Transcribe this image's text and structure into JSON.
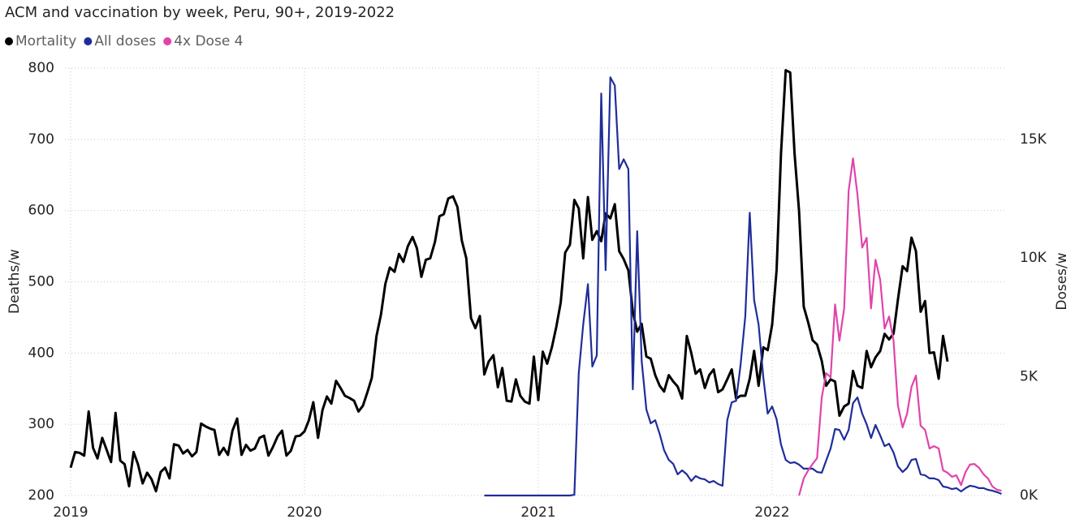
{
  "chart_data": {
    "type": "line",
    "title": "ACM and vaccination by week, Peru, 90+, 2019-2022",
    "y_label": "Deaths/w",
    "y2_label": "Doses/w",
    "xlim": [
      2019,
      2023
    ],
    "xticks": [
      2019,
      2020,
      2021,
      2022
    ],
    "ylim": [
      200,
      800
    ],
    "yticks": [
      200,
      300,
      400,
      500,
      600,
      700,
      800
    ],
    "y2lim": [
      0,
      18000
    ],
    "y2ticks": [
      {
        "value": 0,
        "label": "0K"
      },
      {
        "value": 5000,
        "label": "5K"
      },
      {
        "value": 10000,
        "label": "10K"
      },
      {
        "value": 15000,
        "label": "15K"
      }
    ],
    "grid": true,
    "legend": "top-left",
    "x": [
      2019,
      2019.019,
      2019.038,
      2019.058,
      2019.077,
      2019.096,
      2019.115,
      2019.135,
      2019.154,
      2019.173,
      2019.192,
      2019.212,
      2019.231,
      2019.25,
      2019.269,
      2019.288,
      2019.308,
      2019.327,
      2019.346,
      2019.365,
      2019.385,
      2019.404,
      2019.423,
      2019.442,
      2019.462,
      2019.481,
      2019.5,
      2019.519,
      2019.538,
      2019.558,
      2019.577,
      2019.596,
      2019.615,
      2019.635,
      2019.654,
      2019.673,
      2019.692,
      2019.712,
      2019.731,
      2019.75,
      2019.769,
      2019.788,
      2019.808,
      2019.827,
      2019.846,
      2019.865,
      2019.885,
      2019.904,
      2019.923,
      2019.942,
      2019.962,
      2019.981,
      2020,
      2020.019,
      2020.038,
      2020.058,
      2020.077,
      2020.096,
      2020.115,
      2020.135,
      2020.154,
      2020.173,
      2020.192,
      2020.212,
      2020.231,
      2020.25,
      2020.269,
      2020.288,
      2020.308,
      2020.327,
      2020.346,
      2020.365,
      2020.385,
      2020.404,
      2020.423,
      2020.442,
      2020.462,
      2020.481,
      2020.5,
      2020.519,
      2020.538,
      2020.558,
      2020.577,
      2020.596,
      2020.615,
      2020.635,
      2020.654,
      2020.673,
      2020.692,
      2020.712,
      2020.731,
      2020.75,
      2020.769,
      2020.788,
      2020.808,
      2020.827,
      2020.846,
      2020.865,
      2020.885,
      2020.904,
      2020.923,
      2020.942,
      2020.962,
      2020.981,
      2021,
      2021.019,
      2021.038,
      2021.058,
      2021.077,
      2021.096,
      2021.115,
      2021.135,
      2021.154,
      2021.173,
      2021.192,
      2021.212,
      2021.231,
      2021.25,
      2021.269,
      2021.288,
      2021.308,
      2021.327,
      2021.346,
      2021.365,
      2021.385,
      2021.404,
      2021.423,
      2021.442,
      2021.462,
      2021.481,
      2021.5,
      2021.519,
      2021.538,
      2021.558,
      2021.577,
      2021.596,
      2021.615,
      2021.635,
      2021.654,
      2021.673,
      2021.692,
      2021.712,
      2021.731,
      2021.75,
      2021.769,
      2021.788,
      2021.808,
      2021.827,
      2021.846,
      2021.865,
      2021.885,
      2021.904,
      2021.923,
      2021.942,
      2021.962,
      2021.981,
      2022,
      2022.019,
      2022.038,
      2022.058,
      2022.077,
      2022.096,
      2022.115,
      2022.135,
      2022.154,
      2022.173,
      2022.192,
      2022.212,
      2022.231,
      2022.25,
      2022.269,
      2022.288,
      2022.308,
      2022.327,
      2022.346,
      2022.365,
      2022.385,
      2022.404,
      2022.423,
      2022.442,
      2022.462,
      2022.481,
      2022.5,
      2022.519,
      2022.538,
      2022.558,
      2022.577,
      2022.596,
      2022.615,
      2022.635,
      2022.654,
      2022.673,
      2022.692,
      2022.712,
      2022.731,
      2022.75,
      2022.769,
      2022.788,
      2022.808,
      2022.827,
      2022.846,
      2022.865,
      2022.885,
      2022.904,
      2022.923,
      2022.942,
      2022.962,
      2022.981
    ],
    "series": [
      {
        "name": "Mortality",
        "color": "#000000",
        "values": [
          239,
          261,
          260,
          256,
          318,
          267,
          252,
          281,
          264,
          247,
          316,
          249,
          244,
          213,
          261,
          244,
          217,
          232,
          223,
          206,
          233,
          239,
          224,
          272,
          270,
          259,
          264,
          255,
          261,
          301,
          297,
          294,
          292,
          257,
          267,
          257,
          291,
          308,
          257,
          271,
          263,
          266,
          281,
          284,
          256,
          268,
          283,
          291,
          256,
          263,
          283,
          284,
          290,
          306,
          331,
          281,
          320,
          339,
          329,
          361,
          351,
          340,
          337,
          333,
          318,
          326,
          345,
          365,
          424,
          454,
          497,
          520,
          514,
          539,
          528,
          550,
          563,
          547,
          507,
          531,
          533,
          556,
          592,
          595,
          617,
          620,
          605,
          558,
          533,
          449,
          435,
          452,
          370,
          388,
          397,
          352,
          379,
          333,
          332,
          363,
          340,
          332,
          329,
          395,
          334,
          402,
          385,
          408,
          437,
          471,
          541,
          552,
          615,
          603,
          533,
          619,
          559,
          571,
          557,
          596,
          589,
          609,
          543,
          532,
          516,
          458,
          430,
          441,
          395,
          392,
          369,
          354,
          346,
          369,
          360,
          353,
          336,
          424,
          400,
          371,
          377,
          351,
          369,
          377,
          345,
          349,
          363,
          377,
          336,
          340,
          340,
          364,
          403,
          354,
          408,
          404,
          440,
          517,
          680,
          797,
          794,
          680,
          600,
          465,
          443,
          418,
          412,
          389,
          354,
          363,
          360,
          312,
          325,
          329,
          375,
          354,
          351,
          403,
          380,
          394,
          403,
          427,
          419,
          427,
          475,
          522,
          515,
          562,
          543,
          458,
          473,
          400,
          401,
          364,
          424,
          388,
          null,
          null,
          null,
          null,
          null,
          null,
          null,
          null,
          null,
          null,
          null,
          null
        ]
      },
      {
        "name": "All doses",
        "color": "#1f2d9a",
        "axis": "y2",
        "values": [
          null,
          null,
          null,
          null,
          null,
          null,
          null,
          null,
          null,
          null,
          null,
          null,
          null,
          null,
          null,
          null,
          null,
          null,
          null,
          null,
          null,
          null,
          null,
          null,
          null,
          null,
          null,
          null,
          null,
          null,
          null,
          null,
          null,
          null,
          null,
          null,
          null,
          null,
          null,
          null,
          null,
          null,
          null,
          null,
          null,
          null,
          null,
          null,
          null,
          null,
          null,
          null,
          null,
          null,
          null,
          null,
          null,
          null,
          null,
          null,
          null,
          null,
          null,
          null,
          null,
          null,
          null,
          null,
          null,
          null,
          null,
          null,
          null,
          null,
          null,
          null,
          null,
          null,
          null,
          null,
          null,
          null,
          null,
          null,
          null,
          null,
          null,
          null,
          null,
          null,
          null,
          null,
          0,
          0,
          0,
          0,
          0,
          0,
          0,
          0,
          0,
          0,
          0,
          0,
          0,
          0,
          0,
          0,
          0,
          0,
          0,
          0,
          30,
          5150,
          7200,
          8900,
          5430,
          5900,
          16930,
          9490,
          17610,
          17270,
          13750,
          14160,
          13750,
          4470,
          11130,
          5670,
          3620,
          3040,
          3170,
          2590,
          1910,
          1500,
          1330,
          890,
          1060,
          890,
          610,
          820,
          720,
          680,
          550,
          610,
          480,
          410,
          3170,
          3920,
          3990,
          5500,
          7540,
          11910,
          8230,
          7200,
          4980,
          3450,
          3750,
          3210,
          2150,
          1500,
          1370,
          1400,
          1300,
          1130,
          1130,
          1130,
          990,
          960,
          1470,
          1980,
          2800,
          2760,
          2350,
          2760,
          3890,
          4130,
          3450,
          3000,
          2420,
          2970,
          2530,
          2080,
          2180,
          1810,
          1230,
          990,
          1160,
          1500,
          1540,
          890,
          850,
          720,
          720,
          650,
          380,
          340,
          270,
          310,
          170,
          310,
          410,
          380,
          310,
          310,
          240,
          200,
          140,
          70
        ]
      },
      {
        "name": "4x Dose 4",
        "color": "#e044aa",
        "axis": "y2",
        "values": [
          null,
          null,
          null,
          null,
          null,
          null,
          null,
          null,
          null,
          null,
          null,
          null,
          null,
          null,
          null,
          null,
          null,
          null,
          null,
          null,
          null,
          null,
          null,
          null,
          null,
          null,
          null,
          null,
          null,
          null,
          null,
          null,
          null,
          null,
          null,
          null,
          null,
          null,
          null,
          null,
          null,
          null,
          null,
          null,
          null,
          null,
          null,
          null,
          null,
          null,
          null,
          null,
          null,
          null,
          null,
          null,
          null,
          null,
          null,
          null,
          null,
          null,
          null,
          null,
          null,
          null,
          null,
          null,
          null,
          null,
          null,
          null,
          null,
          null,
          null,
          null,
          null,
          null,
          null,
          null,
          null,
          null,
          null,
          null,
          null,
          null,
          null,
          null,
          null,
          null,
          null,
          null,
          null,
          null,
          null,
          null,
          null,
          null,
          null,
          null,
          null,
          null,
          null,
          null,
          null,
          null,
          null,
          null,
          null,
          null,
          null,
          null,
          null,
          null,
          null,
          null,
          null,
          null,
          null,
          null,
          null,
          null,
          null,
          null,
          null,
          null,
          null,
          null,
          null,
          null,
          null,
          null,
          null,
          null,
          null,
          null,
          null,
          null,
          null,
          null,
          null,
          null,
          null,
          null,
          null,
          null,
          null,
          null,
          null,
          null,
          null,
          null,
          null,
          null,
          null,
          null,
          null,
          null,
          null,
          null,
          null,
          null,
          0,
          720,
          1060,
          1330,
          1570,
          4130,
          5150,
          4980,
          8050,
          6520,
          7880,
          12830,
          14200,
          12660,
          10440,
          10850,
          7880,
          9930,
          9080,
          7030,
          7540,
          6520,
          3790,
          2870,
          3450,
          4570,
          5050,
          2940,
          2760,
          1980,
          2080,
          1980,
          1060,
          960,
          790,
          850,
          440,
          990,
          1300,
          1330,
          1160,
          890,
          720,
          380,
          240,
          200
        ]
      }
    ]
  }
}
